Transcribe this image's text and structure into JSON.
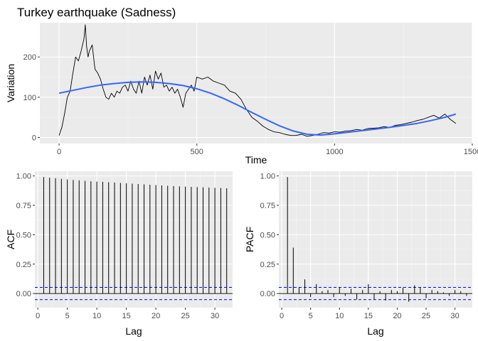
{
  "chart_data": [
    {
      "type": "line",
      "title": "Turkey earthquake (Sadness)",
      "xlabel": "Time",
      "ylabel": "Variation",
      "xlim": [
        -70,
        1500
      ],
      "ylim": [
        -15,
        285
      ],
      "x_ticks": [
        0,
        500,
        1000,
        1500
      ],
      "y_ticks": [
        0,
        100,
        200
      ],
      "grid": true,
      "series": [
        {
          "color": "#000000",
          "x": [
            0,
            5,
            10,
            20,
            30,
            40,
            50,
            60,
            70,
            80,
            90,
            95,
            100,
            105,
            110,
            120,
            130,
            140,
            150,
            160,
            170,
            180,
            190,
            200,
            210,
            220,
            230,
            240,
            250,
            260,
            270,
            280,
            290,
            300,
            310,
            320,
            330,
            340,
            350,
            360,
            370,
            380,
            390,
            400,
            410,
            420,
            430,
            440,
            450,
            460,
            470,
            480,
            490,
            500,
            520,
            540,
            560,
            580,
            600,
            620,
            640,
            660,
            680,
            700,
            720,
            740,
            760,
            780,
            800,
            820,
            840,
            860,
            880,
            900,
            920,
            940,
            960,
            980,
            1000,
            1020,
            1040,
            1060,
            1080,
            1100,
            1120,
            1140,
            1160,
            1180,
            1200,
            1220,
            1240,
            1260,
            1280,
            1300,
            1320,
            1340,
            1360,
            1380,
            1400,
            1420,
            1440
          ],
          "values": [
            5,
            15,
            25,
            60,
            100,
            115,
            160,
            200,
            190,
            215,
            245,
            280,
            225,
            200,
            215,
            230,
            170,
            160,
            145,
            120,
            100,
            95,
            110,
            100,
            115,
            110,
            125,
            130,
            115,
            140,
            120,
            110,
            140,
            110,
            150,
            130,
            155,
            120,
            165,
            145,
            160,
            125,
            130,
            115,
            125,
            110,
            120,
            100,
            75,
            110,
            120,
            130,
            115,
            150,
            145,
            150,
            140,
            135,
            130,
            115,
            110,
            95,
            70,
            50,
            40,
            28,
            20,
            14,
            12,
            8,
            5,
            5,
            8,
            3,
            5,
            8,
            12,
            11,
            14,
            13,
            16,
            17,
            20,
            18,
            22,
            23,
            24,
            27,
            25,
            30,
            32,
            35,
            38,
            42,
            45,
            50,
            55,
            48,
            58,
            45,
            35
          ]
        },
        {
          "color": "#3366ff",
          "x": [
            0,
            50,
            100,
            150,
            200,
            250,
            300,
            350,
            400,
            450,
            500,
            550,
            600,
            650,
            700,
            750,
            800,
            850,
            900,
            950,
            1000,
            1050,
            1100,
            1150,
            1200,
            1250,
            1300,
            1350,
            1400,
            1440
          ],
          "values": [
            110,
            117,
            124,
            130,
            134,
            137,
            138,
            137,
            134,
            129,
            121,
            110,
            96,
            80,
            62,
            45,
            29,
            16,
            8,
            6,
            9,
            13,
            17,
            21,
            25,
            30,
            35,
            42,
            50,
            58
          ]
        }
      ]
    },
    {
      "type": "bar",
      "xlabel": "Lag",
      "ylabel": "ACF",
      "xlim": [
        -0.5,
        33
      ],
      "ylim": [
        -0.12,
        1.04
      ],
      "x_ticks": [
        0,
        5,
        10,
        15,
        20,
        25,
        30
      ],
      "y_ticks": [
        0.0,
        0.25,
        0.5,
        0.75,
        1.0
      ],
      "y_tick_labels": [
        "0.00",
        "0.25",
        "0.50",
        "0.75",
        "1.00"
      ],
      "confidence_band": [
        -0.052,
        0.052
      ],
      "lags": [
        1,
        2,
        3,
        4,
        5,
        6,
        7,
        8,
        9,
        10,
        11,
        12,
        13,
        14,
        15,
        16,
        17,
        18,
        19,
        20,
        21,
        22,
        23,
        24,
        25,
        26,
        27,
        28,
        29,
        30,
        31,
        32
      ],
      "values": [
        0.99,
        0.985,
        0.98,
        0.975,
        0.97,
        0.965,
        0.962,
        0.958,
        0.955,
        0.952,
        0.949,
        0.946,
        0.943,
        0.94,
        0.937,
        0.934,
        0.931,
        0.928,
        0.925,
        0.922,
        0.919,
        0.916,
        0.913,
        0.911,
        0.909,
        0.907,
        0.905,
        0.903,
        0.901,
        0.899,
        0.897,
        0.895
      ],
      "grid": true
    },
    {
      "type": "bar",
      "xlabel": "Lag",
      "ylabel": "PACF",
      "xlim": [
        -0.5,
        33
      ],
      "ylim": [
        -0.12,
        1.04
      ],
      "x_ticks": [
        0,
        5,
        10,
        15,
        20,
        25,
        30
      ],
      "y_ticks": [
        0.0,
        0.25,
        0.5,
        0.75,
        1.0
      ],
      "y_tick_labels": [
        "0.00",
        "0.25",
        "0.50",
        "0.75",
        "1.00"
      ],
      "confidence_band": [
        -0.052,
        0.052
      ],
      "lags": [
        1,
        2,
        3,
        4,
        5,
        6,
        7,
        8,
        9,
        10,
        11,
        12,
        13,
        14,
        15,
        16,
        17,
        18,
        19,
        20,
        21,
        22,
        23,
        24,
        25,
        26,
        27,
        28,
        29,
        30,
        31,
        32
      ],
      "values": [
        0.99,
        0.39,
        0.05,
        0.12,
        -0.03,
        0.08,
        0.02,
        0.03,
        -0.03,
        0.05,
        -0.02,
        0.04,
        -0.05,
        0.03,
        0.08,
        -0.05,
        0.02,
        -0.06,
        0.03,
        0.02,
        0.05,
        -0.07,
        0.07,
        0.05,
        -0.04,
        0.03,
        0.02,
        0.01,
        -0.02,
        0.03,
        0.02,
        -0.02
      ],
      "grid": true
    }
  ]
}
